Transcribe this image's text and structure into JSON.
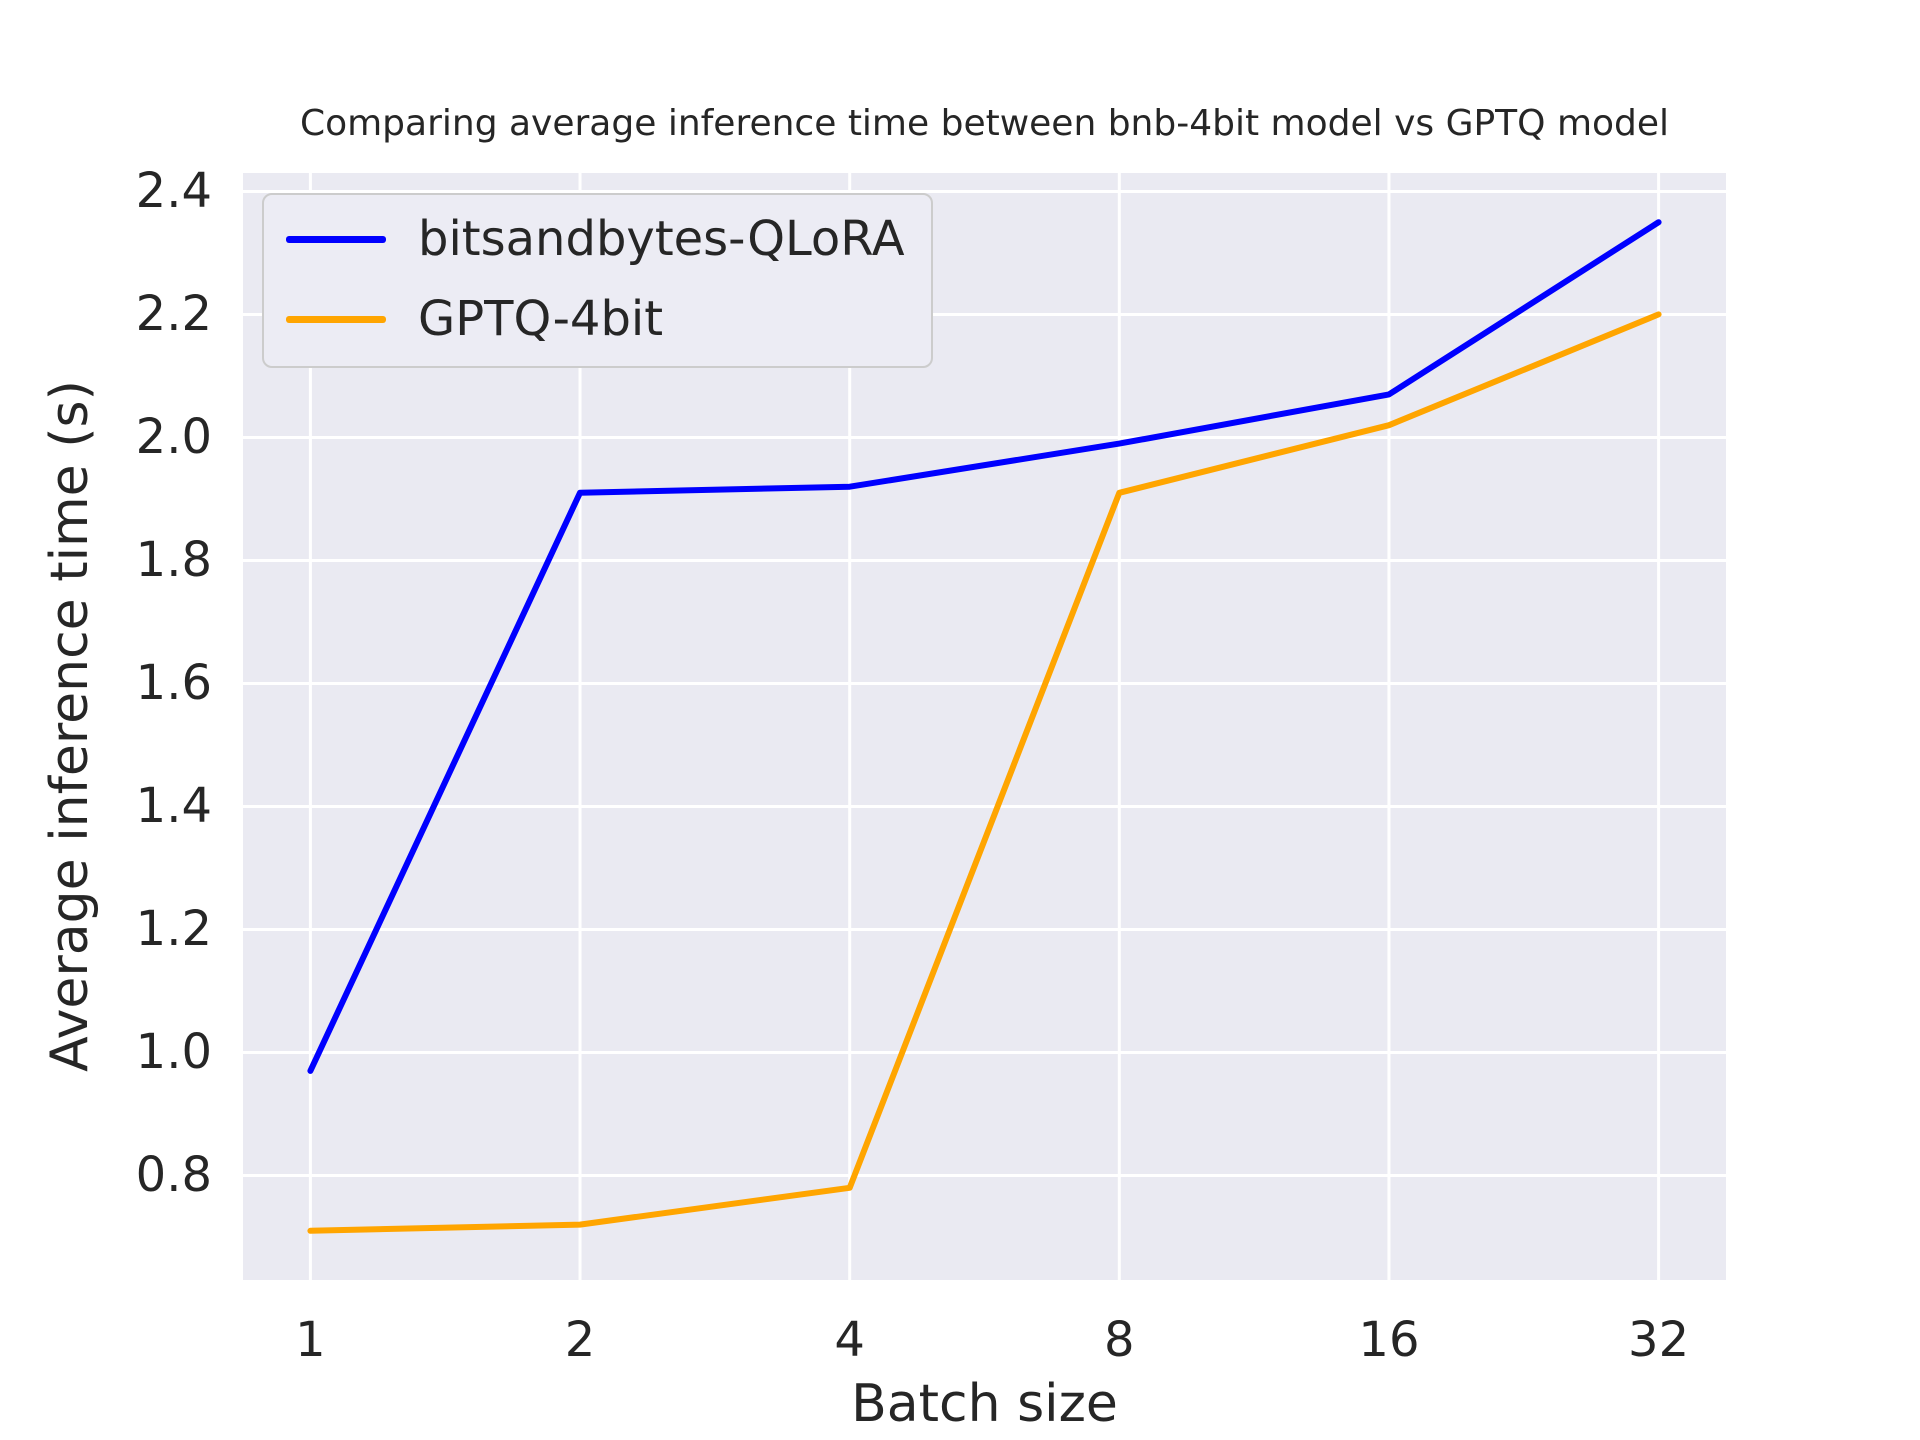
{
  "chart_data": {
    "type": "line",
    "title": "Comparing average inference time between bnb-4bit model vs GPTQ model",
    "xlabel": "Batch size",
    "ylabel": "Average inference time (s)",
    "categories": [
      "1",
      "2",
      "4",
      "8",
      "16",
      "32"
    ],
    "series": [
      {
        "name": "bitsandbytes-QLoRA",
        "color": "#0000ff",
        "values": [
          0.97,
          1.91,
          1.92,
          1.99,
          2.07,
          2.35
        ]
      },
      {
        "name": "GPTQ-4bit",
        "color": "#ffa500",
        "values": [
          0.71,
          0.72,
          0.78,
          1.91,
          2.02,
          2.2
        ]
      }
    ],
    "y_ticks": [
      0.8,
      1.0,
      1.2,
      1.4,
      1.6,
      1.8,
      2.0,
      2.2,
      2.4
    ],
    "ylim": [
      0.63,
      2.43
    ],
    "grid": true,
    "legend_position": "upper left",
    "colors": {
      "plot_background": "#eaeaf2",
      "gridline": "#ffffff",
      "text": "#262626",
      "legend_background": "#ececf4",
      "legend_border": "#cccccc"
    }
  }
}
